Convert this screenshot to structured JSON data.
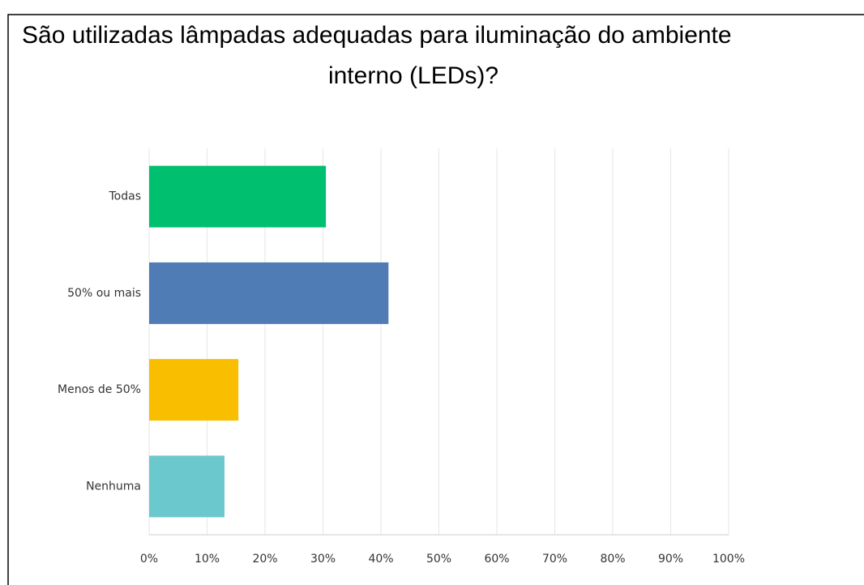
{
  "chart_data": {
    "type": "barh",
    "title": [
      "São utilizadas lâmpadas adequadas para iluminação do ambiente",
      "interno (LEDs)?"
    ],
    "categories": [
      "Todas",
      "50% ou mais",
      "Menos de 50%",
      "Nenhuma"
    ],
    "values": [
      30.5,
      41.3,
      15.4,
      13.0
    ],
    "colors": [
      "#00bf6f",
      "#507cb6",
      "#f9be00",
      "#6bc8cd"
    ],
    "xlim": [
      0,
      100
    ],
    "xticks": [
      {
        "value": 0,
        "label": "0%"
      },
      {
        "value": 10,
        "label": "10%"
      },
      {
        "value": 20,
        "label": "20%"
      },
      {
        "value": 30,
        "label": "30%"
      },
      {
        "value": 40,
        "label": "40%"
      },
      {
        "value": 50,
        "label": "50%"
      },
      {
        "value": 60,
        "label": "60%"
      },
      {
        "value": 70,
        "label": "70%"
      },
      {
        "value": 80,
        "label": "80%"
      },
      {
        "value": 90,
        "label": "90%"
      },
      {
        "value": 100,
        "label": "100%"
      }
    ],
    "grid": true
  }
}
